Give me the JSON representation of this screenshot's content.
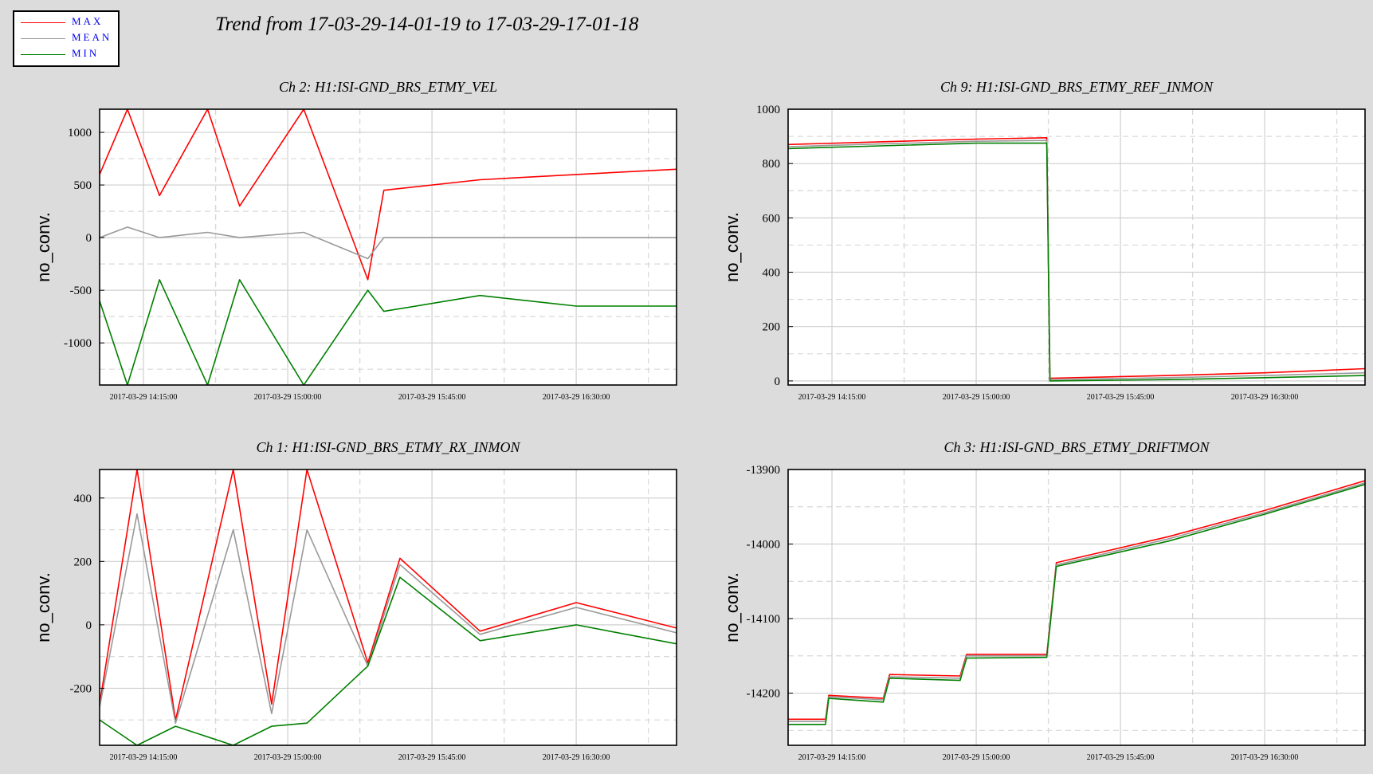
{
  "title": "Trend from 17-03-29-14-01-19 to 17-03-29-17-01-18",
  "legend": [
    {
      "label": "MAX",
      "color": "#ff0000"
    },
    {
      "label": "MEAN",
      "color": "#999999"
    },
    {
      "label": "MIN",
      "color": "#008000"
    }
  ],
  "chart_data": [
    {
      "type": "line",
      "title": "Ch 2: H1:ISI-GND_BRS_ETMY_VEL",
      "ylabel": "no_conv.",
      "xlim": [
        "2017-03-29 14:01:19",
        "2017-03-29 17:01:18"
      ],
      "ylim": [
        -1400,
        1220
      ],
      "yticks": [
        -1000,
        -500,
        0,
        500,
        1000
      ],
      "yticklabels": [
        "-1000",
        "-500",
        "0",
        "500",
        "1000"
      ],
      "xticks": [
        "2017-03-29 14:15:00",
        "2017-03-29 15:00:00",
        "2017-03-29 15:45:00",
        "2017-03-29 16:30:00"
      ],
      "grid": true,
      "series": [
        {
          "name": "MAX",
          "color": "#ff0000",
          "x": [
            "2017-03-29 14:01:19",
            "2017-03-29 14:10:00",
            "2017-03-29 14:20:00",
            "2017-03-29 14:35:00",
            "2017-03-29 14:45:00",
            "2017-03-29 15:05:00",
            "2017-03-29 15:25:00",
            "2017-03-29 15:30:00",
            "2017-03-29 16:00:00",
            "2017-03-29 16:30:00",
            "2017-03-29 17:01:18"
          ],
          "y": [
            600,
            1220,
            400,
            1220,
            300,
            1220,
            -400,
            450,
            550,
            600,
            650
          ]
        },
        {
          "name": "MEAN",
          "color": "#999999",
          "x": [
            "2017-03-29 14:01:19",
            "2017-03-29 14:10:00",
            "2017-03-29 14:20:00",
            "2017-03-29 14:35:00",
            "2017-03-29 14:45:00",
            "2017-03-29 15:05:00",
            "2017-03-29 15:25:00",
            "2017-03-29 15:30:00",
            "2017-03-29 16:00:00",
            "2017-03-29 16:30:00",
            "2017-03-29 17:01:18"
          ],
          "y": [
            0,
            100,
            0,
            50,
            0,
            50,
            -200,
            0,
            0,
            0,
            0
          ]
        },
        {
          "name": "MIN",
          "color": "#008000",
          "x": [
            "2017-03-29 14:01:19",
            "2017-03-29 14:10:00",
            "2017-03-29 14:20:00",
            "2017-03-29 14:35:00",
            "2017-03-29 14:45:00",
            "2017-03-29 15:05:00",
            "2017-03-29 15:25:00",
            "2017-03-29 15:30:00",
            "2017-03-29 16:00:00",
            "2017-03-29 16:30:00",
            "2017-03-29 17:01:18"
          ],
          "y": [
            -600,
            -1400,
            -400,
            -1400,
            -400,
            -1400,
            -500,
            -700,
            -550,
            -650,
            -650
          ]
        }
      ]
    },
    {
      "type": "line",
      "title": "Ch 9: H1:ISI-GND_BRS_ETMY_REF_INMON",
      "ylabel": "no_conv.",
      "xlim": [
        "2017-03-29 14:01:19",
        "2017-03-29 17:01:18"
      ],
      "ylim": [
        -15,
        1000
      ],
      "yticks": [
        0,
        200,
        400,
        600,
        800,
        1000
      ],
      "yticklabels": [
        "0",
        "200",
        "400",
        "600",
        "800",
        "1000"
      ],
      "xticks": [
        "2017-03-29 14:15:00",
        "2017-03-29 15:00:00",
        "2017-03-29 15:45:00",
        "2017-03-29 16:30:00"
      ],
      "grid": true,
      "series": [
        {
          "name": "MAX",
          "color": "#ff0000",
          "x": [
            "2017-03-29 14:01:19",
            "2017-03-29 14:30:00",
            "2017-03-29 15:00:00",
            "2017-03-29 15:22:00",
            "2017-03-29 15:23:00",
            "2017-03-29 16:00:00",
            "2017-03-29 16:30:00",
            "2017-03-29 17:01:18"
          ],
          "y": [
            870,
            880,
            890,
            895,
            10,
            20,
            30,
            45
          ]
        },
        {
          "name": "MEAN",
          "color": "#999999",
          "x": [
            "2017-03-29 14:01:19",
            "2017-03-29 14:30:00",
            "2017-03-29 15:00:00",
            "2017-03-29 15:22:00",
            "2017-03-29 15:23:00",
            "2017-03-29 16:00:00",
            "2017-03-29 16:30:00",
            "2017-03-29 17:01:18"
          ],
          "y": [
            862,
            872,
            882,
            885,
            5,
            12,
            20,
            30
          ]
        },
        {
          "name": "MIN",
          "color": "#008000",
          "x": [
            "2017-03-29 14:01:19",
            "2017-03-29 14:30:00",
            "2017-03-29 15:00:00",
            "2017-03-29 15:22:00",
            "2017-03-29 15:23:00",
            "2017-03-29 16:00:00",
            "2017-03-29 16:30:00",
            "2017-03-29 17:01:18"
          ],
          "y": [
            855,
            865,
            875,
            875,
            0,
            5,
            12,
            20
          ]
        }
      ]
    },
    {
      "type": "line",
      "title": "Ch 1: H1:ISI-GND_BRS_ETMY_RX_INMON",
      "ylabel": "no_conv.",
      "xlim": [
        "2017-03-29 14:01:19",
        "2017-03-29 17:01:18"
      ],
      "ylim": [
        -380,
        490
      ],
      "yticks": [
        -200,
        0,
        200,
        400
      ],
      "yticklabels": [
        "-200",
        "0",
        "200",
        "400"
      ],
      "xticks": [
        "2017-03-29 14:15:00",
        "2017-03-29 15:00:00",
        "2017-03-29 15:45:00",
        "2017-03-29 16:30:00"
      ],
      "grid": true,
      "series": [
        {
          "name": "MAX",
          "color": "#ff0000",
          "x": [
            "2017-03-29 14:01:19",
            "2017-03-29 14:13:00",
            "2017-03-29 14:25:00",
            "2017-03-29 14:43:00",
            "2017-03-29 14:55:00",
            "2017-03-29 15:06:00",
            "2017-03-29 15:25:00",
            "2017-03-29 15:35:00",
            "2017-03-29 16:00:00",
            "2017-03-29 16:30:00",
            "2017-03-29 17:01:18"
          ],
          "y": [
            -250,
            490,
            -300,
            490,
            -250,
            490,
            -120,
            210,
            -20,
            70,
            -10
          ]
        },
        {
          "name": "MEAN",
          "color": "#999999",
          "x": [
            "2017-03-29 14:01:19",
            "2017-03-29 14:13:00",
            "2017-03-29 14:25:00",
            "2017-03-29 14:43:00",
            "2017-03-29 14:55:00",
            "2017-03-29 15:06:00",
            "2017-03-29 15:25:00",
            "2017-03-29 15:35:00",
            "2017-03-29 16:00:00",
            "2017-03-29 16:30:00",
            "2017-03-29 17:01:18"
          ],
          "y": [
            -260,
            350,
            -310,
            300,
            -280,
            300,
            -130,
            190,
            -30,
            55,
            -25
          ]
        },
        {
          "name": "MIN",
          "color": "#008000",
          "x": [
            "2017-03-29 14:01:19",
            "2017-03-29 14:13:00",
            "2017-03-29 14:25:00",
            "2017-03-29 14:43:00",
            "2017-03-29 14:55:00",
            "2017-03-29 15:06:00",
            "2017-03-29 15:25:00",
            "2017-03-29 15:35:00",
            "2017-03-29 16:00:00",
            "2017-03-29 16:30:00",
            "2017-03-29 17:01:18"
          ],
          "y": [
            -300,
            -380,
            -320,
            -380,
            -320,
            -310,
            -130,
            150,
            -50,
            0,
            -60
          ]
        }
      ]
    },
    {
      "type": "line",
      "title": "Ch 3: H1:ISI-GND_BRS_ETMY_DRIFTMON",
      "ylabel": "no_conv.",
      "xlim": [
        "2017-03-29 14:01:19",
        "2017-03-29 17:01:18"
      ],
      "ylim": [
        -14270,
        -13900
      ],
      "yticks": [
        -14200,
        -14100,
        -14000,
        -13900
      ],
      "yticklabels": [
        "-14200",
        "-14100",
        "-14000",
        "-13900"
      ],
      "xticks": [
        "2017-03-29 14:15:00",
        "2017-03-29 15:00:00",
        "2017-03-29 15:45:00",
        "2017-03-29 16:30:00"
      ],
      "grid": true,
      "series": [
        {
          "name": "MAX",
          "color": "#ff0000",
          "x": [
            "2017-03-29 14:01:19",
            "2017-03-29 14:13:00",
            "2017-03-29 14:14:00",
            "2017-03-29 14:31:00",
            "2017-03-29 14:33:00",
            "2017-03-29 14:55:00",
            "2017-03-29 14:57:00",
            "2017-03-29 15:22:00",
            "2017-03-29 15:25:00",
            "2017-03-29 16:00:00",
            "2017-03-29 16:30:00",
            "2017-03-29 17:01:18"
          ],
          "y": [
            -14235,
            -14235,
            -14203,
            -14207,
            -14175,
            -14177,
            -14148,
            -14148,
            -14025,
            -13990,
            -13955,
            -13915
          ]
        },
        {
          "name": "MEAN",
          "color": "#999999",
          "x": [
            "2017-03-29 14:01:19",
            "2017-03-29 14:13:00",
            "2017-03-29 14:14:00",
            "2017-03-29 14:31:00",
            "2017-03-29 14:33:00",
            "2017-03-29 14:55:00",
            "2017-03-29 14:57:00",
            "2017-03-29 15:22:00",
            "2017-03-29 15:25:00",
            "2017-03-29 16:00:00",
            "2017-03-29 16:30:00",
            "2017-03-29 17:01:18"
          ],
          "y": [
            -14238,
            -14238,
            -14205,
            -14209,
            -14178,
            -14180,
            -14150,
            -14150,
            -14028,
            -13993,
            -13958,
            -13918
          ]
        },
        {
          "name": "MIN",
          "color": "#008000",
          "x": [
            "2017-03-29 14:01:19",
            "2017-03-29 14:13:00",
            "2017-03-29 14:14:00",
            "2017-03-29 14:31:00",
            "2017-03-29 14:33:00",
            "2017-03-29 14:55:00",
            "2017-03-29 14:57:00",
            "2017-03-29 15:22:00",
            "2017-03-29 15:25:00",
            "2017-03-29 16:00:00",
            "2017-03-29 16:30:00",
            "2017-03-29 17:01:18"
          ],
          "y": [
            -14242,
            -14242,
            -14207,
            -14212,
            -14180,
            -14183,
            -14153,
            -14152,
            -14030,
            -13996,
            -13960,
            -13920
          ]
        }
      ]
    }
  ]
}
